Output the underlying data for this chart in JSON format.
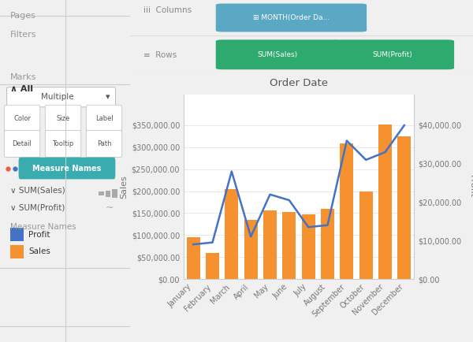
{
  "months": [
    "January",
    "February",
    "March",
    "April",
    "May",
    "June",
    "July",
    "August",
    "September",
    "October",
    "November",
    "December"
  ],
  "sales": [
    95000,
    60000,
    205000,
    135000,
    157000,
    153000,
    148000,
    160000,
    308000,
    200000,
    352000,
    325000
  ],
  "profit": [
    9000,
    9500,
    28000,
    11000,
    22000,
    20500,
    13500,
    14000,
    36000,
    31000,
    33000,
    40000
  ],
  "bar_color": "#F5922F",
  "line_color": "#4472C4",
  "title": "Order Date",
  "ylabel_left": "Sales",
  "ylabel_right": "Profit",
  "sales_ylim": [
    0,
    420000
  ],
  "profit_ylim": [
    0,
    48000
  ],
  "sales_yticks": [
    0,
    50000,
    100000,
    150000,
    200000,
    250000,
    300000,
    350000
  ],
  "profit_yticks": [
    0,
    10000,
    20000,
    30000,
    40000
  ],
  "bg_color": "#f0f0f0",
  "panel_bg": "#ffffff",
  "sidebar_bg": "#f0f0f0",
  "chart_area_bg": "#f8f8f8",
  "teal_color": "#3AACB0",
  "green_color": "#2EAA6F",
  "orange_color": "#F5922F",
  "blue_color": "#4472C4"
}
